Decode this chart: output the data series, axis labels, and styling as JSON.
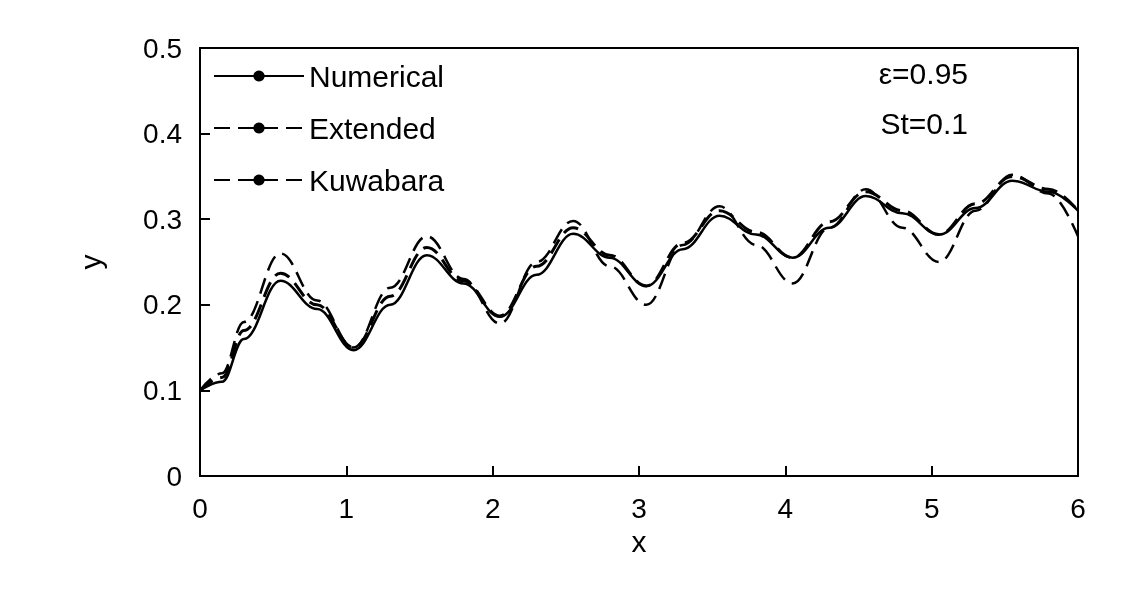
{
  "chart_data": {
    "type": "line",
    "xlabel": "x",
    "ylabel": "y",
    "annotations": [
      "ε=0.95",
      "St=0.1"
    ],
    "x": [
      0,
      0.15,
      0.3,
      0.55,
      0.8,
      1.05,
      1.3,
      1.55,
      1.8,
      2.05,
      2.3,
      2.55,
      2.8,
      3.05,
      3.3,
      3.55,
      3.8,
      4.05,
      4.3,
      4.55,
      4.8,
      5.05,
      5.3,
      5.55,
      5.8,
      6
    ],
    "series": [
      {
        "name": "Numerical",
        "color": "#000000",
        "line_style": "solid",
        "values": [
          0.1,
          0.11,
          0.16,
          0.228,
          0.195,
          0.147,
          0.2,
          0.258,
          0.225,
          0.186,
          0.235,
          0.283,
          0.255,
          0.222,
          0.265,
          0.304,
          0.282,
          0.255,
          0.29,
          0.327,
          0.307,
          0.282,
          0.313,
          0.345,
          0.332,
          0.31
        ]
      },
      {
        "name": "Extended",
        "color": "#000000",
        "line_style": "dashed",
        "values": [
          0.1,
          0.115,
          0.17,
          0.237,
          0.2,
          0.15,
          0.21,
          0.267,
          0.228,
          0.187,
          0.245,
          0.29,
          0.258,
          0.222,
          0.272,
          0.31,
          0.285,
          0.255,
          0.297,
          0.332,
          0.31,
          0.282,
          0.318,
          0.35,
          0.335,
          0.31
        ]
      },
      {
        "name": "Kuwabara",
        "color": "#000000",
        "line_style": "dashed",
        "values": [
          0.1,
          0.12,
          0.18,
          0.26,
          0.205,
          0.15,
          0.22,
          0.28,
          0.23,
          0.178,
          0.25,
          0.298,
          0.245,
          0.2,
          0.27,
          0.315,
          0.27,
          0.225,
          0.29,
          0.335,
          0.29,
          0.25,
          0.31,
          0.352,
          0.33,
          0.28
        ]
      }
    ],
    "xlim": [
      0,
      6
    ],
    "xticks": [
      0,
      1,
      2,
      3,
      4,
      5,
      6
    ],
    "ylim": [
      0,
      0.5
    ],
    "yticks": [
      0,
      0.1,
      0.2,
      0.3,
      0.4,
      0.5
    ],
    "grid": false,
    "legend": "top left",
    "marker": "none"
  }
}
